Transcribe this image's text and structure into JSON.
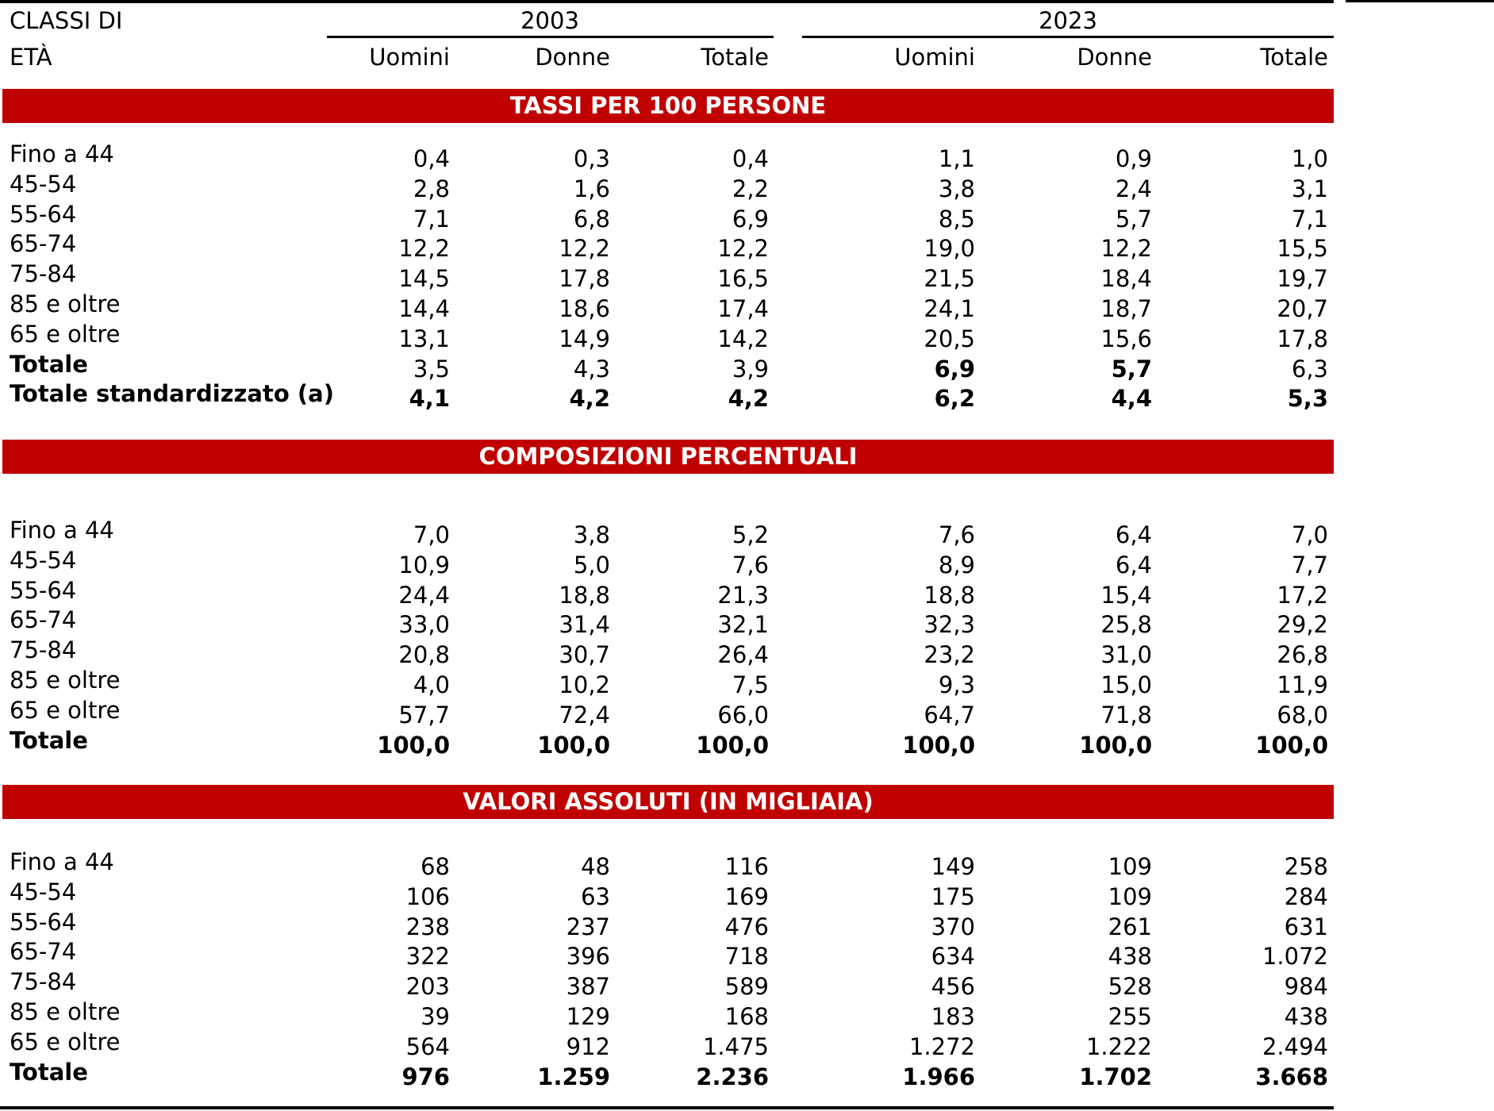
{
  "header": {
    "label_lines": [
      "CLASSI DI",
      "ETÀ"
    ],
    "years": [
      "2003",
      "2023"
    ],
    "columns": [
      "Uomini",
      "Donne",
      "Totale",
      "Uomini",
      "Donne",
      "Totale"
    ]
  },
  "sections": [
    {
      "title": "TASSI PER 100 PERSONE",
      "rows": [
        {
          "label": "Fino a 44",
          "values": [
            "0,4",
            "0,3",
            "0,4",
            "1,1",
            "0,9",
            "1,0"
          ]
        },
        {
          "label": "45-54",
          "values": [
            "2,8",
            "1,6",
            "2,2",
            "3,8",
            "2,4",
            "3,1"
          ]
        },
        {
          "label": "55-64",
          "values": [
            "7,1",
            "6,8",
            "6,9",
            "8,5",
            "5,7",
            "7,1"
          ]
        },
        {
          "label": "65-74",
          "values": [
            "12,2",
            "12,2",
            "12,2",
            "19,0",
            "12,2",
            "15,5"
          ]
        },
        {
          "label": "75-84",
          "values": [
            "14,5",
            "17,8",
            "16,5",
            "21,5",
            "18,4",
            "19,7"
          ]
        },
        {
          "label": "85 e oltre",
          "values": [
            "14,4",
            "18,6",
            "17,4",
            "24,1",
            "18,7",
            "20,7"
          ]
        },
        {
          "label": "65 e oltre",
          "values": [
            "13,1",
            "14,9",
            "14,2",
            "20,5",
            "15,6",
            "17,8"
          ]
        },
        {
          "label": "Totale",
          "values": [
            "3,5",
            "4,3",
            "3,9",
            "6,9",
            "5,7",
            "6,3"
          ],
          "bold": [
            true,
            false,
            false,
            false,
            true,
            true,
            false
          ]
        },
        {
          "label": "Totale standardizzato (a)",
          "values": [
            "4,1",
            "4,2",
            "4,2",
            "6,2",
            "4,4",
            "5,3"
          ],
          "bold": [
            true,
            true,
            true,
            true,
            true,
            true,
            true
          ]
        }
      ]
    },
    {
      "title": "COMPOSIZIONI PERCENTUALI",
      "rows": [
        {
          "label": "Fino a 44",
          "values": [
            "7,0",
            "3,8",
            "5,2",
            "7,6",
            "6,4",
            "7,0"
          ]
        },
        {
          "label": "45-54",
          "values": [
            "10,9",
            "5,0",
            "7,6",
            "8,9",
            "6,4",
            "7,7"
          ]
        },
        {
          "label": "55-64",
          "values": [
            "24,4",
            "18,8",
            "21,3",
            "18,8",
            "15,4",
            "17,2"
          ]
        },
        {
          "label": "65-74",
          "values": [
            "33,0",
            "31,4",
            "32,1",
            "32,3",
            "25,8",
            "29,2"
          ]
        },
        {
          "label": "75-84",
          "values": [
            "20,8",
            "30,7",
            "26,4",
            "23,2",
            "31,0",
            "26,8"
          ]
        },
        {
          "label": "85 e oltre",
          "values": [
            "4,0",
            "10,2",
            "7,5",
            "9,3",
            "15,0",
            "11,9"
          ]
        },
        {
          "label": "65 e oltre",
          "values": [
            "57,7",
            "72,4",
            "66,0",
            "64,7",
            "71,8",
            "68,0"
          ]
        },
        {
          "label": "Totale",
          "values": [
            "100,0",
            "100,0",
            "100,0",
            "100,0",
            "100,0",
            "100,0"
          ],
          "bold": [
            true,
            true,
            true,
            true,
            true,
            true,
            true
          ]
        }
      ]
    },
    {
      "title": "VALORI ASSOLUTI (IN MIGLIAIA)",
      "rows": [
        {
          "label": "Fino a 44",
          "values": [
            "68",
            "48",
            "116",
            "149",
            "109",
            "258"
          ]
        },
        {
          "label": "45-54",
          "values": [
            "106",
            "63",
            "169",
            "175",
            "109",
            "284"
          ]
        },
        {
          "label": "55-64",
          "values": [
            "238",
            "237",
            "476",
            "370",
            "261",
            "631"
          ]
        },
        {
          "label": "65-74",
          "values": [
            "322",
            "396",
            "718",
            "634",
            "438",
            "1.072"
          ]
        },
        {
          "label": "75-84",
          "values": [
            "203",
            "387",
            "589",
            "456",
            "528",
            "984"
          ]
        },
        {
          "label": "85 e oltre",
          "values": [
            "39",
            "129",
            "168",
            "183",
            "255",
            "438"
          ]
        },
        {
          "label": "65 e oltre",
          "values": [
            "564",
            "912",
            "1.475",
            "1.272",
            "1.222",
            "2.494"
          ]
        },
        {
          "label": "Totale",
          "values": [
            "976",
            "1.259",
            "2.236",
            "1.966",
            "1.702",
            "3.668"
          ],
          "bold": [
            true,
            true,
            true,
            true,
            true,
            true,
            true
          ]
        }
      ]
    }
  ]
}
